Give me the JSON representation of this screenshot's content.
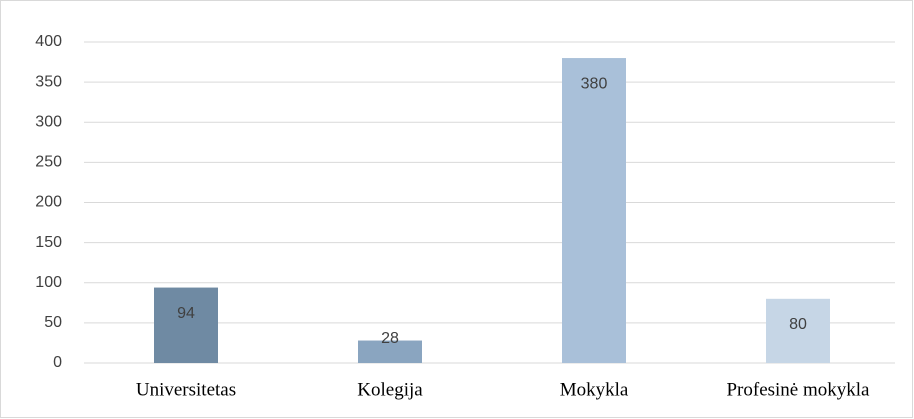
{
  "chart_data": {
    "type": "bar",
    "categories": [
      "Universitetas",
      "Kolegija",
      "Mokykla",
      "Profesinė mokykla"
    ],
    "values": [
      94,
      28,
      380,
      80
    ],
    "colors": [
      "#6f8aa3",
      "#8aa5c0",
      "#a9c0d9",
      "#c6d6e6"
    ],
    "ylim": [
      0,
      400
    ],
    "yticks": [
      0,
      50,
      100,
      150,
      200,
      250,
      300,
      350,
      400
    ],
    "grid": true
  }
}
